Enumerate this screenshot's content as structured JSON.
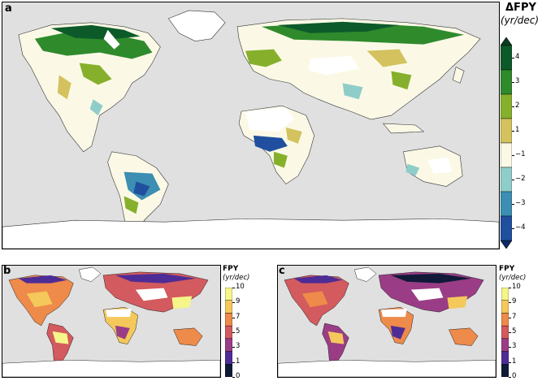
{
  "panels": {
    "a": {
      "label": "a"
    },
    "b": {
      "label": "b"
    },
    "c": {
      "label": "c"
    }
  },
  "colorbar_a": {
    "title": "ΔFPY",
    "unit": "(yr/dec)",
    "ticks": [
      "4",
      "3",
      "2",
      "1",
      "−1",
      "−2",
      "−3",
      "−4"
    ],
    "colors": [
      "#0c5a2a",
      "#2f8a2c",
      "#86b02c",
      "#d3c25e",
      "#fbf9e6",
      "#8fcdc9",
      "#3c8eb2",
      "#1f4f9e"
    ],
    "extend_colors": {
      "top": "#0b3d1e",
      "bottom": "#0b2a66"
    }
  },
  "colorbar_b": {
    "title": "FPY",
    "unit": "(yr/dec)",
    "ticks": [
      "10",
      "9",
      "7",
      "5",
      "3",
      "1",
      "0"
    ],
    "colors": [
      "#f5f58a",
      "#f4c85a",
      "#ee8a4a",
      "#d35a5e",
      "#9a3d86",
      "#4e2c96",
      "#101a38"
    ]
  },
  "colorbar_c": {
    "title": "FPY",
    "unit": "(yr/dec)",
    "ticks": [
      "10",
      "9",
      "7",
      "5",
      "3",
      "1",
      "0"
    ],
    "colors": [
      "#f5f58a",
      "#f4c85a",
      "#ee8a4a",
      "#d35a5e",
      "#9a3d86",
      "#4e2c96",
      "#101a38"
    ]
  }
}
